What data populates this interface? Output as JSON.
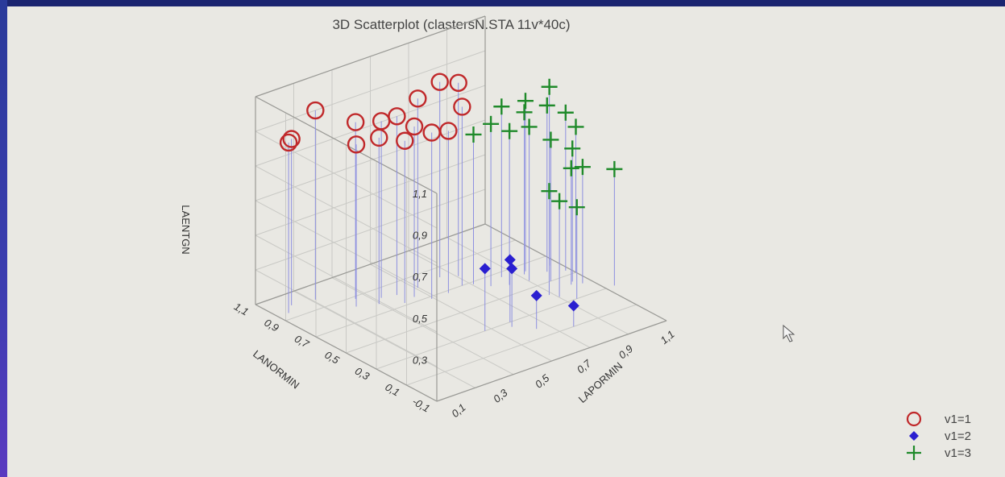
{
  "chart_data": {
    "type": "scatter3d",
    "title": "3D Scatterplot (clastersN.STA 11v*40c)",
    "xlabel": "LAPORMIN",
    "ylabel": "LANORMIN",
    "zlabel": "LAENTGN",
    "x_ticks": [
      "0,1",
      "0,3",
      "0,5",
      "0,7",
      "0,9",
      "1,1"
    ],
    "y_ticks": [
      "-0,1",
      "0,1",
      "0,3",
      "0,5",
      "0,7",
      "0,9",
      "1,1"
    ],
    "z_ticks": [
      "0,3",
      "0,5",
      "0,7",
      "0,9",
      "1,1"
    ],
    "xlim": [
      0.0,
      1.1
    ],
    "ylim": [
      -0.1,
      1.1
    ],
    "zlim": [
      0.1,
      1.1
    ],
    "legend_position": "bottom-right",
    "grid": true,
    "series": [
      {
        "name": "v1=1",
        "marker": "circle",
        "color": "#c0282a",
        "points": [
          {
            "x": 0.05,
            "y": 0.95,
            "z": 0.92
          },
          {
            "x": 0.1,
            "y": 1.0,
            "z": 0.9
          },
          {
            "x": 0.2,
            "y": 0.98,
            "z": 1.01
          },
          {
            "x": 0.28,
            "y": 0.82,
            "z": 0.88
          },
          {
            "x": 0.32,
            "y": 0.88,
            "z": 0.95
          },
          {
            "x": 0.36,
            "y": 0.78,
            "z": 0.9
          },
          {
            "x": 0.4,
            "y": 0.82,
            "z": 0.95
          },
          {
            "x": 0.44,
            "y": 0.72,
            "z": 0.88
          },
          {
            "x": 0.46,
            "y": 0.8,
            "z": 0.96
          },
          {
            "x": 0.5,
            "y": 0.74,
            "z": 0.92
          },
          {
            "x": 0.54,
            "y": 0.68,
            "z": 0.9
          },
          {
            "x": 0.56,
            "y": 0.8,
            "z": 1.01
          },
          {
            "x": 0.62,
            "y": 0.68,
            "z": 0.88
          },
          {
            "x": 0.68,
            "y": 0.82,
            "z": 1.04
          },
          {
            "x": 0.74,
            "y": 0.78,
            "z": 1.03
          },
          {
            "x": 0.7,
            "y": 0.7,
            "z": 0.96
          }
        ]
      },
      {
        "name": "v1=2",
        "marker": "diamond",
        "color": "#2a1fd0",
        "points": [
          {
            "x": 0.52,
            "y": 0.3,
            "z": 0.4
          },
          {
            "x": 0.62,
            "y": 0.26,
            "z": 0.38
          },
          {
            "x": 0.64,
            "y": 0.3,
            "z": 0.4
          },
          {
            "x": 0.68,
            "y": 0.18,
            "z": 0.26
          },
          {
            "x": 0.8,
            "y": 0.1,
            "z": 0.2
          }
        ]
      },
      {
        "name": "v1=3",
        "marker": "plus",
        "color": "#1f8a2a",
        "points": [
          {
            "x": 0.74,
            "y": 0.68,
            "z": 0.82
          },
          {
            "x": 0.78,
            "y": 0.62,
            "z": 0.88
          },
          {
            "x": 0.86,
            "y": 0.66,
            "z": 0.92
          },
          {
            "x": 0.96,
            "y": 0.64,
            "z": 0.92
          },
          {
            "x": 0.84,
            "y": 0.58,
            "z": 0.84
          },
          {
            "x": 0.92,
            "y": 0.56,
            "z": 0.84
          },
          {
            "x": 0.94,
            "y": 0.62,
            "z": 0.88
          },
          {
            "x": 1.02,
            "y": 0.58,
            "z": 0.9
          },
          {
            "x": 1.06,
            "y": 0.62,
            "z": 0.96
          },
          {
            "x": 1.08,
            "y": 0.54,
            "z": 0.86
          },
          {
            "x": 0.98,
            "y": 0.5,
            "z": 0.78
          },
          {
            "x": 1.04,
            "y": 0.44,
            "z": 0.74
          },
          {
            "x": 0.9,
            "y": 0.4,
            "z": 0.6
          },
          {
            "x": 0.92,
            "y": 0.36,
            "z": 0.56
          },
          {
            "x": 0.96,
            "y": 0.3,
            "z": 0.54
          },
          {
            "x": 1.02,
            "y": 0.42,
            "z": 0.66
          },
          {
            "x": 1.06,
            "y": 0.4,
            "z": 0.66
          },
          {
            "x": 1.1,
            "y": 0.5,
            "z": 0.8
          },
          {
            "x": 1.14,
            "y": 0.3,
            "z": 0.66
          }
        ]
      }
    ],
    "legend": [
      {
        "label": "v1=1",
        "marker": "circle"
      },
      {
        "label": "v1=2",
        "marker": "diamond"
      },
      {
        "label": "v1=3",
        "marker": "plus"
      }
    ]
  }
}
